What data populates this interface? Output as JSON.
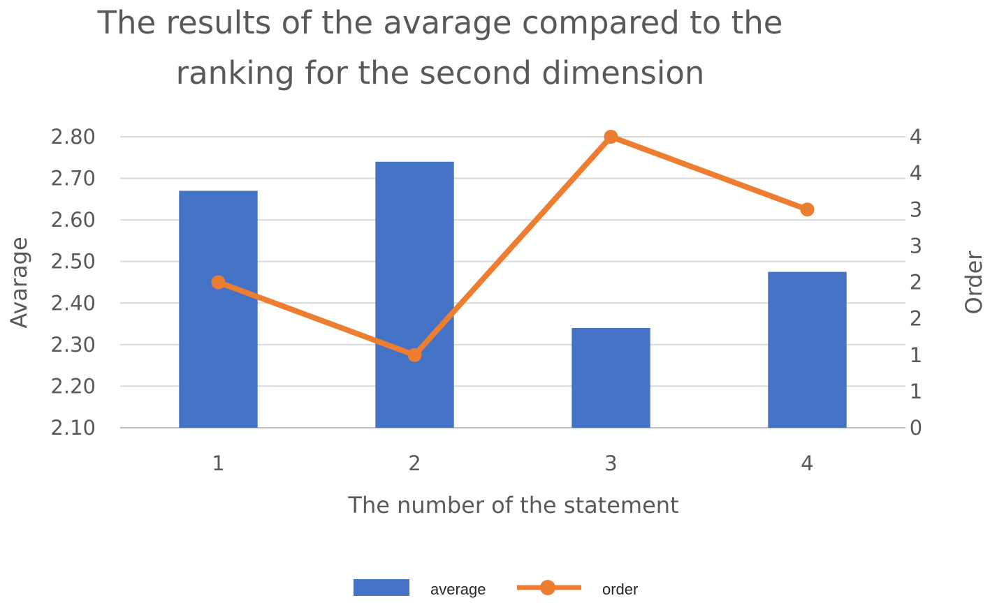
{
  "chart_data": {
    "type": "bar",
    "title_lines": [
      "The results of the avarage compared to the",
      "ranking for the second dimension"
    ],
    "xlabel": "The number of the statement",
    "ylabel": "Avarage",
    "y2label": "Order",
    "categories": [
      "1",
      "2",
      "3",
      "4"
    ],
    "series": [
      {
        "name": "average",
        "type": "bar",
        "axis": "left",
        "color": "#4472C4",
        "values": [
          2.67,
          2.74,
          2.34,
          2.475
        ]
      },
      {
        "name": "order",
        "type": "line",
        "axis": "right",
        "color": "#ED7D31",
        "values": [
          2,
          1,
          4,
          3
        ]
      }
    ],
    "ylim": [
      2.1,
      2.8
    ],
    "yticks": [
      "2.10",
      "2.20",
      "2.30",
      "2.40",
      "2.50",
      "2.60",
      "2.70",
      "2.80"
    ],
    "y2lim": [
      0,
      4
    ],
    "y2ticks": [
      "0",
      "1",
      "1",
      "2",
      "2",
      "3",
      "3",
      "4",
      "4"
    ],
    "grid": true,
    "legend": "bottom"
  }
}
